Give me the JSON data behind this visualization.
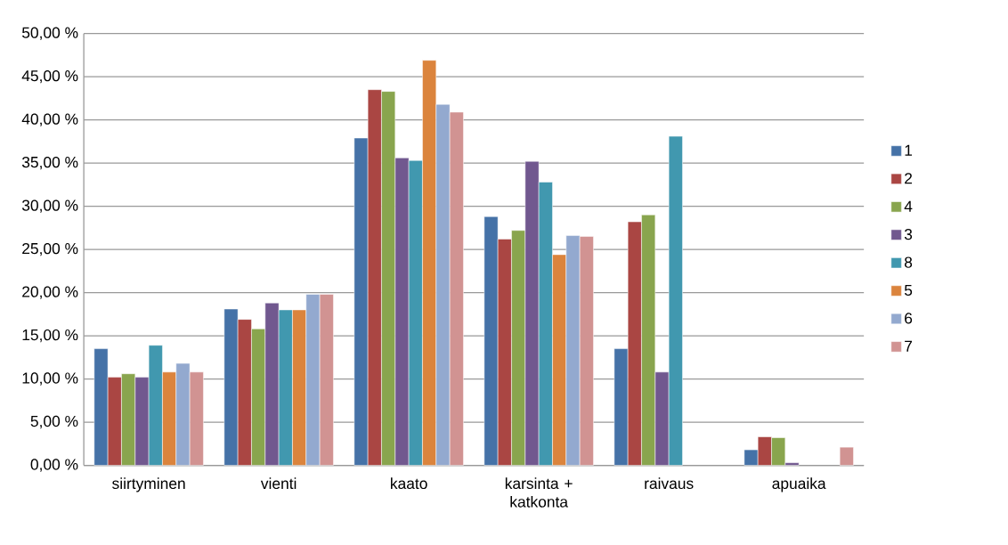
{
  "chart_data": {
    "type": "bar",
    "categories": [
      "siirtyminen",
      "vienti",
      "kaato",
      "karsinta + katkonta",
      "raivaus",
      "apuaika"
    ],
    "series": [
      {
        "name": "1",
        "color": "#4572a7",
        "values": [
          13.5,
          18.1,
          37.9,
          28.8,
          13.5,
          1.8
        ]
      },
      {
        "name": "2",
        "color": "#aa4643",
        "values": [
          10.2,
          16.9,
          43.5,
          26.2,
          28.2,
          3.3
        ]
      },
      {
        "name": "4",
        "color": "#89a54e",
        "values": [
          10.6,
          15.8,
          43.3,
          27.2,
          29.0,
          3.2
        ]
      },
      {
        "name": "3",
        "color": "#71588f",
        "values": [
          10.2,
          18.8,
          35.6,
          35.2,
          10.8,
          0.3
        ]
      },
      {
        "name": "8",
        "color": "#4198af",
        "values": [
          13.9,
          18.0,
          35.3,
          32.8,
          38.1,
          null
        ]
      },
      {
        "name": "5",
        "color": "#db843d",
        "values": [
          10.8,
          18.0,
          46.9,
          24.4,
          null,
          null
        ]
      },
      {
        "name": "6",
        "color": "#93a9cf",
        "values": [
          11.8,
          19.8,
          41.8,
          26.6,
          null,
          null
        ]
      },
      {
        "name": "7",
        "color": "#d19392",
        "values": [
          10.8,
          19.8,
          40.9,
          26.5,
          null,
          2.1
        ]
      }
    ],
    "ylim": [
      0,
      50
    ],
    "yticks": [
      {
        "value": 0,
        "label": "0,00 %"
      },
      {
        "value": 5,
        "label": "5,00 %"
      },
      {
        "value": 10,
        "label": "10,00 %"
      },
      {
        "value": 15,
        "label": "15,00 %"
      },
      {
        "value": 20,
        "label": "20,00 %"
      },
      {
        "value": 25,
        "label": "25,00 %"
      },
      {
        "value": 30,
        "label": "30,00 %"
      },
      {
        "value": 35,
        "label": "35,00 %"
      },
      {
        "value": 40,
        "label": "40,00 %"
      },
      {
        "value": 45,
        "label": "45,00 %"
      },
      {
        "value": 50,
        "label": "50,00 %"
      }
    ],
    "grid": "y",
    "legend": "right"
  }
}
